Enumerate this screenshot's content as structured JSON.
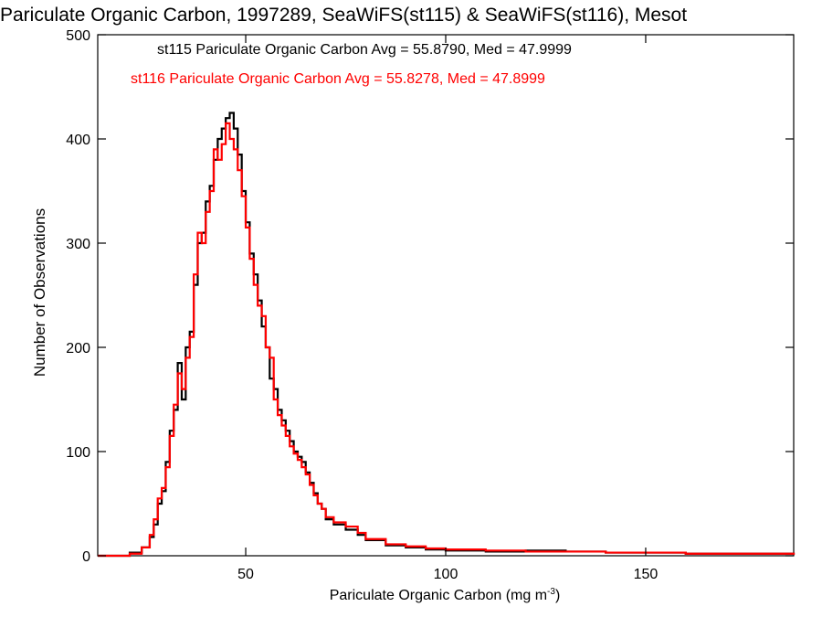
{
  "chart_data": {
    "type": "line",
    "title": "Pariculate Organic Carbon, 1997289, SeaWiFS(st115) & SeaWiFS(st116), Mesot",
    "xlabel": "Pariculate Organic Carbon (mg m",
    "xlabel_sup": "-3",
    "xlabel_suffix": ")",
    "ylabel": "Number of Observations",
    "xlim": [
      13,
      187
    ],
    "ylim": [
      0,
      500
    ],
    "x_ticks": [
      50,
      100,
      150
    ],
    "x_tick_labels": [
      "50",
      "100",
      "150"
    ],
    "y_ticks": [
      0,
      100,
      200,
      300,
      400,
      500
    ],
    "y_tick_labels": [
      "0",
      "100",
      "200",
      "300",
      "400",
      "500"
    ],
    "grid": false,
    "legend_position": "top-left",
    "annotations": [
      "st115 Pariculate Organic Carbon Avg = 55.8790, Med = 47.9999",
      "st116 Pariculate Organic Carbon Avg = 55.8278, Med = 47.8999"
    ],
    "series": [
      {
        "color": "#000000",
        "x": [
          13,
          18,
          21,
          24,
          26,
          27,
          28,
          29,
          30,
          31,
          32,
          33,
          34,
          35,
          36,
          37,
          38,
          39,
          40,
          41,
          42,
          43,
          44,
          45,
          46,
          47,
          48,
          49,
          50,
          51,
          52,
          53,
          54,
          55,
          56,
          57,
          58,
          59,
          60,
          61,
          62,
          63,
          64,
          65,
          66,
          67,
          68,
          69,
          70,
          72,
          75,
          78,
          80,
          85,
          90,
          95,
          100,
          110,
          120,
          130,
          140,
          150,
          160,
          170,
          180,
          187
        ],
        "values": [
          0,
          0,
          3,
          8,
          18,
          30,
          50,
          62,
          90,
          120,
          140,
          185,
          150,
          200,
          215,
          260,
          300,
          310,
          340,
          355,
          380,
          400,
          410,
          420,
          425,
          410,
          385,
          350,
          320,
          290,
          270,
          245,
          220,
          200,
          170,
          160,
          140,
          130,
          120,
          110,
          100,
          95,
          90,
          80,
          70,
          60,
          50,
          45,
          35,
          30,
          25,
          20,
          15,
          10,
          8,
          6,
          5,
          4,
          5,
          4,
          3,
          3,
          2,
          2,
          2,
          1
        ]
      },
      {
        "color": "#ff0000",
        "x": [
          13,
          18,
          21,
          24,
          26,
          27,
          28,
          29,
          30,
          31,
          32,
          33,
          34,
          35,
          36,
          37,
          38,
          39,
          40,
          41,
          42,
          43,
          44,
          45,
          46,
          47,
          48,
          49,
          50,
          51,
          52,
          53,
          54,
          55,
          56,
          57,
          58,
          59,
          60,
          61,
          62,
          63,
          64,
          65,
          66,
          67,
          68,
          69,
          70,
          72,
          75,
          78,
          80,
          85,
          90,
          95,
          100,
          110,
          120,
          130,
          140,
          150,
          160,
          170,
          180,
          187
        ],
        "values": [
          0,
          0,
          2,
          8,
          20,
          35,
          55,
          65,
          85,
          115,
          145,
          175,
          160,
          190,
          210,
          270,
          310,
          300,
          330,
          350,
          390,
          380,
          395,
          415,
          400,
          390,
          370,
          345,
          315,
          285,
          260,
          240,
          230,
          200,
          190,
          150,
          135,
          125,
          115,
          105,
          98,
          92,
          85,
          78,
          68,
          58,
          50,
          45,
          37,
          32,
          28,
          22,
          16,
          11,
          9,
          7,
          6,
          5,
          4,
          4,
          3,
          3,
          2,
          2,
          2,
          1
        ]
      }
    ]
  }
}
